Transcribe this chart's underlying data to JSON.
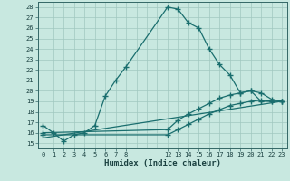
{
  "xlabel": "Humidex (Indice chaleur)",
  "bg_color": "#c8e8e0",
  "grid_color": "#a0c8c0",
  "line_color": "#1a6e6e",
  "xlim": [
    -0.5,
    23.5
  ],
  "ylim": [
    14.5,
    28.5
  ],
  "yticks": [
    15,
    16,
    17,
    18,
    19,
    20,
    21,
    22,
    23,
    24,
    25,
    26,
    27,
    28
  ],
  "xticks_all": [
    0,
    1,
    2,
    3,
    4,
    5,
    6,
    7,
    8,
    9,
    10,
    11,
    12,
    13,
    14,
    15,
    16,
    17,
    18,
    19,
    20,
    21,
    22,
    23
  ],
  "xtick_labeled": [
    0,
    1,
    2,
    3,
    4,
    5,
    6,
    7,
    8,
    12,
    13,
    14,
    15,
    16,
    17,
    18,
    19,
    20,
    21,
    22,
    23
  ],
  "xtick_labels": [
    "0",
    "1",
    "2",
    "3",
    "4",
    "5",
    "6",
    "7",
    "8",
    "12",
    "13",
    "14",
    "15",
    "16",
    "17",
    "18",
    "19",
    "20",
    "21",
    "22",
    "23"
  ],
  "line1_x": [
    0,
    1,
    2,
    3,
    4,
    5,
    6,
    7,
    8,
    12,
    13,
    14,
    15,
    16,
    17,
    18,
    19,
    20,
    21,
    22,
    23
  ],
  "line1_y": [
    16.7,
    16.0,
    15.2,
    15.8,
    16.0,
    16.7,
    19.5,
    21.0,
    22.3,
    28.0,
    27.8,
    26.5,
    26.0,
    24.0,
    22.5,
    21.5,
    19.8,
    20.0,
    19.0,
    19.0,
    19.0
  ],
  "line2_x": [
    0,
    12,
    13,
    14,
    15,
    16,
    17,
    18,
    19,
    20,
    21,
    22,
    23
  ],
  "line2_y": [
    16.0,
    16.3,
    17.2,
    17.8,
    18.3,
    18.8,
    19.3,
    19.6,
    19.8,
    20.0,
    19.8,
    19.2,
    19.0
  ],
  "line3_x": [
    0,
    12,
    13,
    14,
    15,
    16,
    17,
    18,
    19,
    20,
    21,
    22,
    23
  ],
  "line3_y": [
    15.8,
    15.8,
    16.3,
    16.8,
    17.3,
    17.8,
    18.2,
    18.6,
    18.8,
    19.0,
    19.1,
    19.0,
    19.0
  ],
  "line4_x": [
    0,
    23
  ],
  "line4_y": [
    15.5,
    19.0
  ]
}
